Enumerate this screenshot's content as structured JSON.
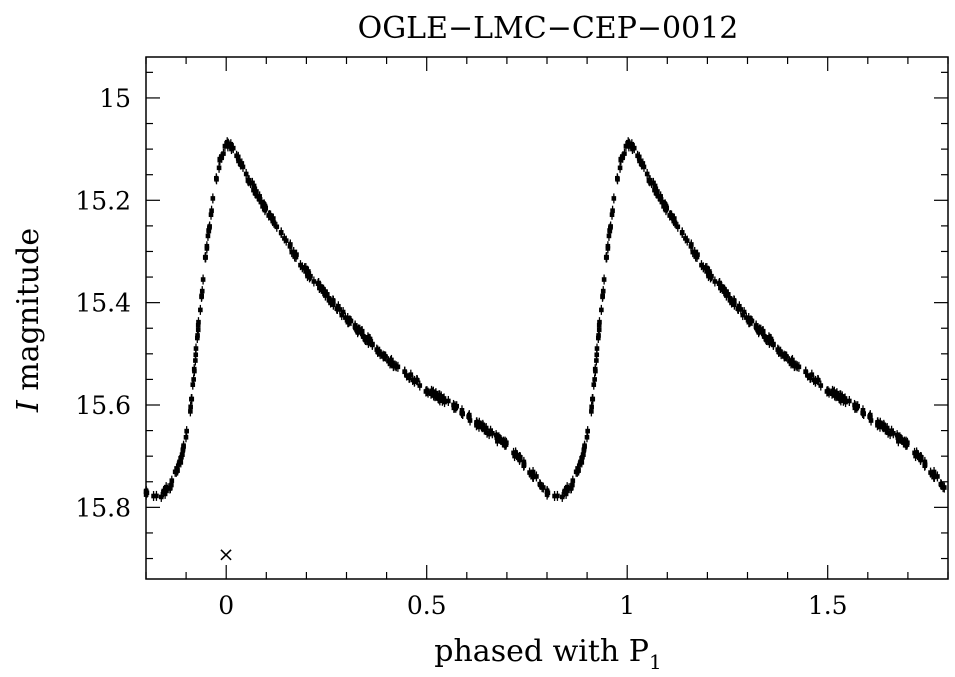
{
  "chart_data": {
    "type": "scatter",
    "title": "OGLE−LMC−CEP−0012",
    "xlabel_text": "phased with P",
    "xlabel_subscript": "1",
    "ylabel_italic": "I",
    "ylabel_text": " magnitude",
    "xlim": [
      -0.2,
      1.8
    ],
    "ylim": [
      15.94,
      14.92
    ],
    "y_inverted": true,
    "xticks": [
      {
        "value": 0,
        "label": "0"
      },
      {
        "value": 0.5,
        "label": "0.5"
      },
      {
        "value": 1,
        "label": "1"
      },
      {
        "value": 1.5,
        "label": "1.5"
      }
    ],
    "yticks": [
      {
        "value": 15,
        "label": "15"
      },
      {
        "value": 15.2,
        "label": "15.2"
      },
      {
        "value": 15.4,
        "label": "15.4"
      },
      {
        "value": 15.6,
        "label": "15.6"
      },
      {
        "value": 15.8,
        "label": "15.8"
      }
    ],
    "marker": {
      "x": 0,
      "y": 15.89,
      "symbol": "×"
    },
    "curve_knots": {
      "phase": [
        0.0,
        0.02,
        0.05,
        0.1,
        0.2,
        0.3,
        0.4,
        0.5,
        0.6,
        0.7,
        0.76,
        0.8,
        0.83,
        0.86,
        0.89,
        0.91,
        0.93,
        0.95,
        0.97,
        0.985,
        1.0
      ],
      "mag": [
        15.09,
        15.1,
        15.15,
        15.22,
        15.34,
        15.43,
        15.51,
        15.57,
        15.62,
        15.68,
        15.73,
        15.77,
        15.78,
        15.76,
        15.7,
        15.62,
        15.45,
        15.3,
        15.18,
        15.12,
        15.09
      ]
    },
    "grid": false,
    "legend": "none"
  }
}
